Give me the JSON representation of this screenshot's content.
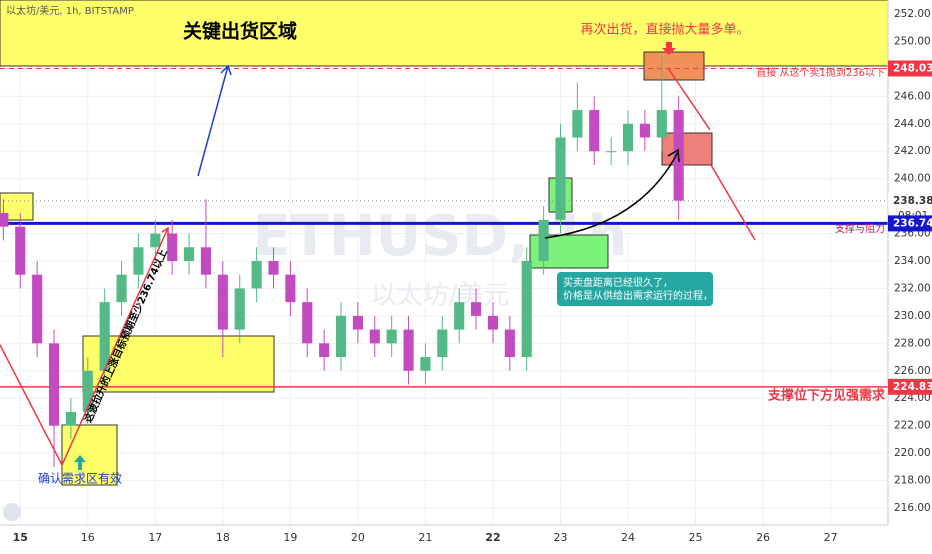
{
  "chart_data": {
    "type": "candlestick",
    "title": "关键出货区域",
    "source": "以太坊/美元, 1h, BITSTAMP",
    "watermark": "ETHUSD, 1h",
    "watermark_sub": "以太坊/美元",
    "annotations": [
      "再次出货，直接抛大量多单。",
      "直接 从这个卖1抛到236以下",
      "支撑与阻力",
      "支撑位下方见强需求",
      "买卖盘距离已经很久了，",
      "价格是从供给出需求运行的过程，",
      "确认需求区有效",
      "这波拉升的上涨目标预期至少236.74以上"
    ],
    "hlines": [
      {
        "value": 248.03,
        "color": "#f23645"
      },
      {
        "value": 238.38,
        "color": "#888888"
      },
      {
        "value": 236.74,
        "color": "#1515d0"
      },
      {
        "value": 224.83,
        "color": "#f23645"
      }
    ],
    "time_tag": "08:01",
    "up_color": "#53b987",
    "down_color": "#c24bc0",
    "x": [
      14.75,
      15,
      15.25,
      15.5,
      15.75,
      16,
      16.25,
      16.5,
      16.75,
      17,
      17.25,
      17.5,
      17.75,
      18,
      18.25,
      18.5,
      18.75,
      19,
      19.25,
      19.5,
      19.75,
      20,
      20.25,
      20.5,
      20.75,
      21,
      21.25,
      21.5,
      21.75,
      22,
      22.25,
      22.5,
      22.75,
      23,
      23.25,
      23.5,
      23.75,
      24,
      24.25,
      24.5,
      24.75
    ],
    "open": [
      237.5,
      236.5,
      233,
      228,
      222,
      223,
      226,
      231,
      233,
      235,
      236,
      234,
      235,
      233,
      229,
      232,
      234,
      233,
      231,
      228,
      227,
      230,
      229,
      228,
      229,
      226,
      227,
      229,
      231,
      230,
      229,
      227,
      234,
      237,
      243,
      245,
      242,
      242,
      244,
      243,
      245
    ],
    "high": [
      238.5,
      237.5,
      234,
      229,
      224,
      227,
      232,
      234,
      236,
      237,
      237,
      236,
      238.5,
      234,
      233,
      235,
      235,
      234,
      232,
      229,
      231,
      231,
      230,
      230,
      230,
      228,
      230,
      232,
      232,
      231,
      230,
      235,
      238,
      244,
      247,
      246,
      243,
      245,
      245,
      249,
      246
    ],
    "low": [
      235.5,
      232,
      227,
      219,
      221,
      222,
      225,
      230,
      232,
      234,
      233,
      233,
      232,
      227,
      228,
      231,
      232,
      230,
      227,
      226,
      226,
      228,
      227,
      227,
      225,
      225,
      226,
      228,
      229,
      228,
      226,
      226,
      233,
      236,
      242,
      241,
      241,
      241,
      242,
      242,
      237
    ],
    "close": [
      236.5,
      233,
      228,
      222,
      223,
      226,
      231,
      233,
      235,
      236,
      234,
      235,
      233,
      229,
      232,
      234,
      233,
      231,
      228,
      227,
      230,
      229,
      228,
      229,
      226,
      227,
      229,
      231,
      230,
      229,
      227,
      234,
      237,
      243,
      245,
      242,
      242,
      244,
      243,
      245,
      238.4
    ],
    "xlim": [
      14.7,
      27.85
    ],
    "xticks": [
      15,
      16,
      17,
      18,
      19,
      20,
      21,
      22,
      23,
      24,
      25,
      26,
      27
    ],
    "ylim": [
      214.76,
      253.02
    ],
    "yticks": [
      {
        "value": 216,
        "label": "216.00"
      },
      {
        "value": 218,
        "label": "218.00"
      },
      {
        "value": 220,
        "label": "220.00"
      },
      {
        "value": 222,
        "label": "222.00"
      },
      {
        "value": 224,
        "label": "224.00"
      },
      {
        "value": 226,
        "label": "226.00"
      },
      {
        "value": 228,
        "label": "228.00"
      },
      {
        "value": 230,
        "label": "230.00"
      },
      {
        "value": 232,
        "label": "232.00"
      },
      {
        "value": 234,
        "label": "234.00"
      },
      {
        "value": 236,
        "label": "236.00"
      },
      {
        "value": 238,
        "label": "238.00"
      },
      {
        "value": 240,
        "label": "240.00"
      },
      {
        "value": 242,
        "label": "242.00"
      },
      {
        "value": 244,
        "label": "244.00"
      },
      {
        "value": 246,
        "label": "246.00"
      },
      {
        "value": 248,
        "label": "248.00"
      },
      {
        "value": 250,
        "label": "250.00"
      },
      {
        "value": 252,
        "label": "252.00"
      }
    ],
    "grid": true
  }
}
